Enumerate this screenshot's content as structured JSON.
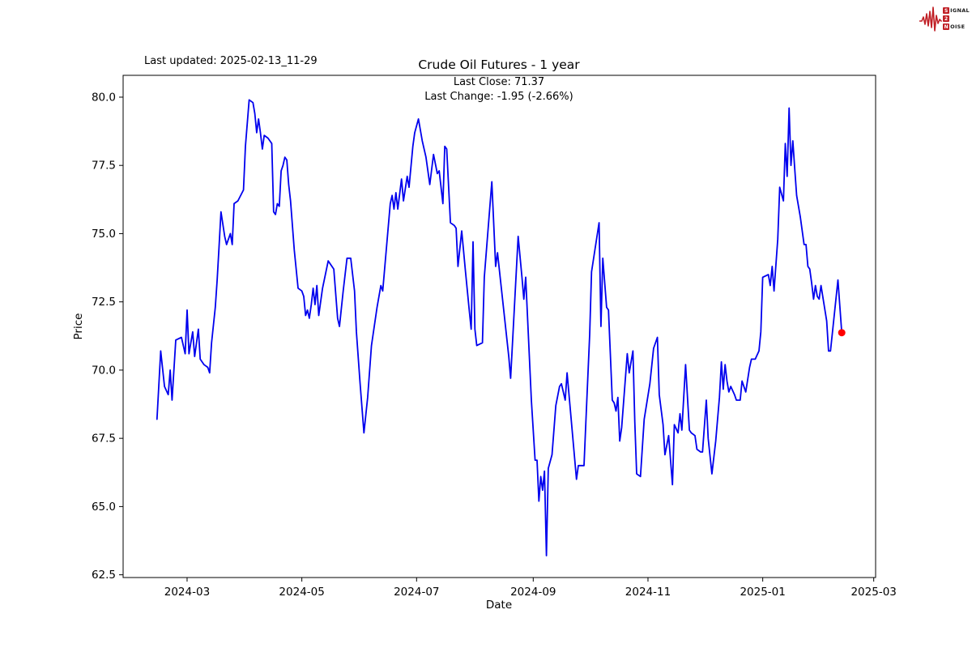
{
  "header": {
    "last_updated": "Last updated: 2025-02-13_11-29"
  },
  "logo": {
    "color": "#c01f25",
    "lines": [
      {
        "initial": "S",
        "rest": "IGNAL"
      },
      {
        "initial": "2",
        "rest": ""
      },
      {
        "initial": "N",
        "rest": "OISE"
      }
    ]
  },
  "chart_data": {
    "type": "line",
    "title": "Crude Oil Futures - 1 year",
    "subtitle_lines": [
      "Last Close: 71.37",
      "Last Change: -1.95 (-2.66%)"
    ],
    "xlabel": "Date",
    "ylabel": "Price",
    "last_close": 71.37,
    "last_change": -1.95,
    "last_change_pct": "-2.66%",
    "line_color": "#0000ee",
    "last_point_color": "#ff0000",
    "grid": false,
    "start_date": "2024-02-14",
    "x_unit": "days_since_start_date",
    "xlim_days": [
      -18,
      382
    ],
    "ylim": [
      62.4,
      80.8
    ],
    "x_ticks": [
      {
        "day": 16,
        "label": "2024-03"
      },
      {
        "day": 77,
        "label": "2024-05"
      },
      {
        "day": 138,
        "label": "2024-07"
      },
      {
        "day": 200,
        "label": "2024-09"
      },
      {
        "day": 261,
        "label": "2024-11"
      },
      {
        "day": 322,
        "label": "2025-01"
      },
      {
        "day": 381,
        "label": "2025-03"
      }
    ],
    "y_ticks": [
      {
        "value": 62.5,
        "label": "62.5"
      },
      {
        "value": 65.0,
        "label": "65.0"
      },
      {
        "value": 67.5,
        "label": "67.5"
      },
      {
        "value": 70.0,
        "label": "70.0"
      },
      {
        "value": 72.5,
        "label": "72.5"
      },
      {
        "value": 75.0,
        "label": "75.0"
      },
      {
        "value": 77.5,
        "label": "77.5"
      },
      {
        "value": 80.0,
        "label": "80.0"
      }
    ],
    "points": [
      [
        0,
        68.2
      ],
      [
        2,
        70.7
      ],
      [
        4,
        69.4
      ],
      [
        6,
        69.1
      ],
      [
        7,
        70.0
      ],
      [
        8,
        68.9
      ],
      [
        10,
        71.1
      ],
      [
        13,
        71.2
      ],
      [
        15,
        70.6
      ],
      [
        16,
        72.2
      ],
      [
        17,
        70.6
      ],
      [
        19,
        71.4
      ],
      [
        20,
        70.5
      ],
      [
        22,
        71.5
      ],
      [
        23,
        70.4
      ],
      [
        25,
        70.2
      ],
      [
        27,
        70.1
      ],
      [
        28,
        69.9
      ],
      [
        29,
        71.0
      ],
      [
        31,
        72.3
      ],
      [
        32,
        73.3
      ],
      [
        33,
        74.5
      ],
      [
        34,
        75.8
      ],
      [
        36,
        74.9
      ],
      [
        37,
        74.6
      ],
      [
        39,
        75.0
      ],
      [
        40,
        74.6
      ],
      [
        41,
        76.1
      ],
      [
        43,
        76.2
      ],
      [
        46,
        76.6
      ],
      [
        47,
        78.2
      ],
      [
        49,
        79.9
      ],
      [
        51,
        79.8
      ],
      [
        52,
        79.4
      ],
      [
        53,
        78.7
      ],
      [
        54,
        79.2
      ],
      [
        55,
        78.7
      ],
      [
        56,
        78.1
      ],
      [
        57,
        78.6
      ],
      [
        59,
        78.5
      ],
      [
        60,
        78.4
      ],
      [
        61,
        78.3
      ],
      [
        62,
        75.8
      ],
      [
        63,
        75.7
      ],
      [
        64,
        76.1
      ],
      [
        65,
        76.0
      ],
      [
        66,
        77.3
      ],
      [
        67,
        77.5
      ],
      [
        68,
        77.8
      ],
      [
        69,
        77.7
      ],
      [
        70,
        76.8
      ],
      [
        71,
        76.2
      ],
      [
        73,
        74.4
      ],
      [
        75,
        73.0
      ],
      [
        77,
        72.9
      ],
      [
        78,
        72.7
      ],
      [
        79,
        72.0
      ],
      [
        80,
        72.2
      ],
      [
        81,
        71.9
      ],
      [
        82,
        72.4
      ],
      [
        83,
        73.0
      ],
      [
        84,
        72.4
      ],
      [
        85,
        73.1
      ],
      [
        86,
        72.0
      ],
      [
        88,
        73.0
      ],
      [
        91,
        74.0
      ],
      [
        92,
        73.9
      ],
      [
        94,
        73.7
      ],
      [
        96,
        71.9
      ],
      [
        97,
        71.6
      ],
      [
        99,
        72.9
      ],
      [
        101,
        74.1
      ],
      [
        103,
        74.1
      ],
      [
        105,
        72.9
      ],
      [
        106,
        71.4
      ],
      [
        108,
        69.5
      ],
      [
        110,
        67.7
      ],
      [
        112,
        69.0
      ],
      [
        114,
        70.9
      ],
      [
        117,
        72.3
      ],
      [
        119,
        73.1
      ],
      [
        120,
        72.9
      ],
      [
        124,
        76.1
      ],
      [
        125,
        76.4
      ],
      [
        126,
        75.9
      ],
      [
        127,
        76.5
      ],
      [
        128,
        75.9
      ],
      [
        130,
        77.0
      ],
      [
        131,
        76.2
      ],
      [
        133,
        77.1
      ],
      [
        134,
        76.7
      ],
      [
        136,
        78.2
      ],
      [
        137,
        78.7
      ],
      [
        139,
        79.2
      ],
      [
        141,
        78.4
      ],
      [
        143,
        77.8
      ],
      [
        145,
        76.8
      ],
      [
        147,
        77.9
      ],
      [
        149,
        77.2
      ],
      [
        150,
        77.3
      ],
      [
        152,
        76.1
      ],
      [
        153,
        78.2
      ],
      [
        154,
        78.1
      ],
      [
        156,
        75.4
      ],
      [
        158,
        75.3
      ],
      [
        159,
        75.2
      ],
      [
        160,
        73.8
      ],
      [
        162,
        75.1
      ],
      [
        164,
        73.6
      ],
      [
        166,
        72.2
      ],
      [
        167,
        71.5
      ],
      [
        168,
        74.7
      ],
      [
        169,
        71.5
      ],
      [
        170,
        70.9
      ],
      [
        173,
        71.0
      ],
      [
        174,
        73.4
      ],
      [
        178,
        76.9
      ],
      [
        180,
        73.8
      ],
      [
        181,
        74.3
      ],
      [
        187,
        70.5
      ],
      [
        188,
        69.7
      ],
      [
        192,
        74.9
      ],
      [
        194,
        73.4
      ],
      [
        195,
        72.6
      ],
      [
        196,
        73.4
      ],
      [
        199,
        68.9
      ],
      [
        201,
        66.7
      ],
      [
        202,
        66.7
      ],
      [
        203,
        65.2
      ],
      [
        204,
        66.1
      ],
      [
        205,
        65.6
      ],
      [
        206,
        66.3
      ],
      [
        207,
        63.2
      ],
      [
        208,
        66.4
      ],
      [
        210,
        66.9
      ],
      [
        212,
        68.7
      ],
      [
        214,
        69.4
      ],
      [
        215,
        69.5
      ],
      [
        217,
        68.9
      ],
      [
        218,
        69.9
      ],
      [
        223,
        66.0
      ],
      [
        224,
        66.5
      ],
      [
        227,
        66.5
      ],
      [
        228,
        68.1
      ],
      [
        230,
        71.3
      ],
      [
        231,
        73.6
      ],
      [
        235,
        75.4
      ],
      [
        236,
        71.6
      ],
      [
        237,
        74.1
      ],
      [
        239,
        72.3
      ],
      [
        240,
        72.2
      ],
      [
        241,
        70.6
      ],
      [
        242,
        68.9
      ],
      [
        243,
        68.8
      ],
      [
        244,
        68.5
      ],
      [
        245,
        69.0
      ],
      [
        246,
        67.4
      ],
      [
        247,
        67.9
      ],
      [
        250,
        70.6
      ],
      [
        251,
        69.9
      ],
      [
        253,
        70.7
      ],
      [
        254,
        68.1
      ],
      [
        255,
        66.2
      ],
      [
        257,
        66.1
      ],
      [
        259,
        68.2
      ],
      [
        262,
        69.5
      ],
      [
        264,
        70.8
      ],
      [
        266,
        71.2
      ],
      [
        267,
        69.1
      ],
      [
        269,
        68.0
      ],
      [
        270,
        66.9
      ],
      [
        272,
        67.6
      ],
      [
        274,
        65.8
      ],
      [
        275,
        68.0
      ],
      [
        277,
        67.7
      ],
      [
        278,
        68.4
      ],
      [
        279,
        67.8
      ],
      [
        281,
        70.2
      ],
      [
        283,
        67.8
      ],
      [
        284,
        67.7
      ],
      [
        286,
        67.6
      ],
      [
        287,
        67.1
      ],
      [
        289,
        67.0
      ],
      [
        290,
        67.0
      ],
      [
        292,
        68.9
      ],
      [
        293,
        67.5
      ],
      [
        295,
        66.2
      ],
      [
        297,
        67.4
      ],
      [
        299,
        69.0
      ],
      [
        300,
        70.3
      ],
      [
        301,
        69.3
      ],
      [
        302,
        70.2
      ],
      [
        303,
        69.6
      ],
      [
        304,
        69.2
      ],
      [
        305,
        69.4
      ],
      [
        307,
        69.1
      ],
      [
        308,
        68.9
      ],
      [
        310,
        68.9
      ],
      [
        311,
        69.6
      ],
      [
        313,
        69.2
      ],
      [
        315,
        70.1
      ],
      [
        316,
        70.4
      ],
      [
        318,
        70.4
      ],
      [
        320,
        70.7
      ],
      [
        321,
        71.4
      ],
      [
        322,
        73.4
      ],
      [
        325,
        73.5
      ],
      [
        326,
        73.1
      ],
      [
        327,
        73.8
      ],
      [
        328,
        72.9
      ],
      [
        330,
        74.8
      ],
      [
        331,
        76.7
      ],
      [
        333,
        76.2
      ],
      [
        334,
        78.3
      ],
      [
        335,
        77.1
      ],
      [
        336,
        79.6
      ],
      [
        337,
        77.5
      ],
      [
        338,
        78.4
      ],
      [
        339,
        77.4
      ],
      [
        340,
        76.4
      ],
      [
        342,
        75.6
      ],
      [
        344,
        74.6
      ],
      [
        345,
        74.6
      ],
      [
        346,
        73.8
      ],
      [
        347,
        73.7
      ],
      [
        348,
        73.2
      ],
      [
        349,
        72.6
      ],
      [
        350,
        73.1
      ],
      [
        351,
        72.7
      ],
      [
        352,
        72.6
      ],
      [
        353,
        73.1
      ],
      [
        356,
        71.8
      ],
      [
        357,
        70.7
      ],
      [
        358,
        70.7
      ],
      [
        362,
        73.3
      ],
      [
        364,
        71.37
      ]
    ]
  }
}
